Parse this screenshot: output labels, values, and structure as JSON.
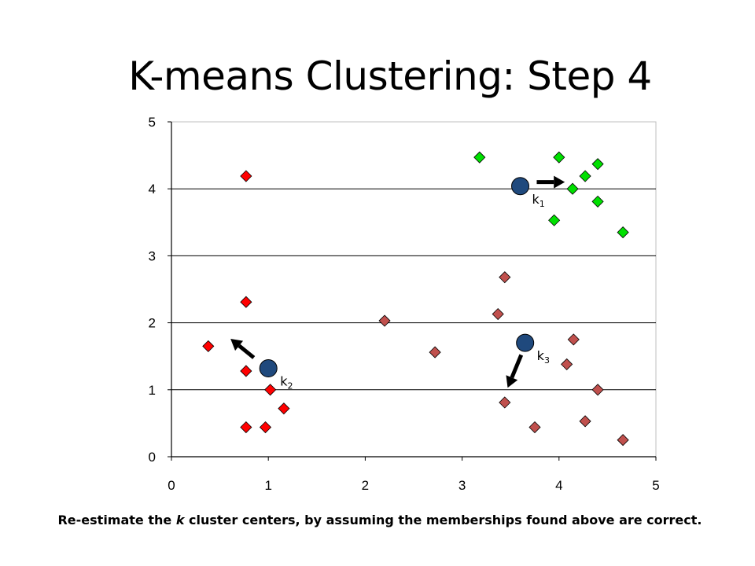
{
  "title": "K-means Clustering: Step 4",
  "caption": {
    "pre": "Re-estimate the ",
    "emph": "k",
    "post": " cluster centers, by assuming the memberships found above are correct."
  },
  "chart_data": {
    "type": "scatter",
    "title": "K-means Clustering: Step 4",
    "xlabel": "",
    "ylabel": "",
    "xlim": [
      0,
      5
    ],
    "ylim": [
      0,
      5
    ],
    "xticks": [
      "0",
      "1",
      "2",
      "3",
      "4",
      "5"
    ],
    "yticks": [
      "0",
      "1",
      "2",
      "3",
      "4",
      "5"
    ],
    "grid": "horizontal",
    "legend": "none",
    "series": [
      {
        "color": "#00e000",
        "marker": "diamond",
        "x": [
          3.18,
          4.0,
          4.27,
          4.4,
          4.14,
          4.4,
          3.95,
          4.66
        ],
        "y": [
          4.47,
          4.47,
          4.19,
          4.37,
          4.0,
          3.81,
          3.53,
          3.35
        ]
      },
      {
        "color": "#ff0000",
        "marker": "diamond",
        "x": [
          0.77,
          0.77,
          0.38,
          0.77,
          1.02,
          1.16,
          0.77,
          0.97
        ],
        "y": [
          4.19,
          2.31,
          1.65,
          1.28,
          1.0,
          0.72,
          0.44,
          0.44
        ]
      },
      {
        "color": "#c0504d",
        "marker": "diamond",
        "x": [
          3.44,
          2.2,
          3.37,
          2.72,
          4.15,
          4.08,
          4.4,
          3.44,
          3.75,
          4.27,
          4.66
        ],
        "y": [
          2.68,
          2.03,
          2.13,
          1.56,
          1.75,
          1.38,
          1.0,
          0.81,
          0.44,
          0.53,
          0.25
        ]
      }
    ],
    "centers": [
      {
        "label": "k",
        "sub": "1",
        "x": 3.6,
        "y": 4.04,
        "color": "#1f497d"
      },
      {
        "label": "k",
        "sub": "2",
        "x": 1.0,
        "y": 1.32,
        "color": "#1f497d"
      },
      {
        "label": "k",
        "sub": "3",
        "x": 3.65,
        "y": 1.7,
        "color": "#1f497d"
      }
    ],
    "arrows": [
      {
        "from": [
          3.77,
          4.1
        ],
        "to": [
          4.06,
          4.1
        ]
      },
      {
        "from": [
          0.85,
          1.48
        ],
        "to": [
          0.61,
          1.76
        ]
      },
      {
        "from": [
          3.61,
          1.52
        ],
        "to": [
          3.47,
          1.03
        ]
      }
    ]
  }
}
